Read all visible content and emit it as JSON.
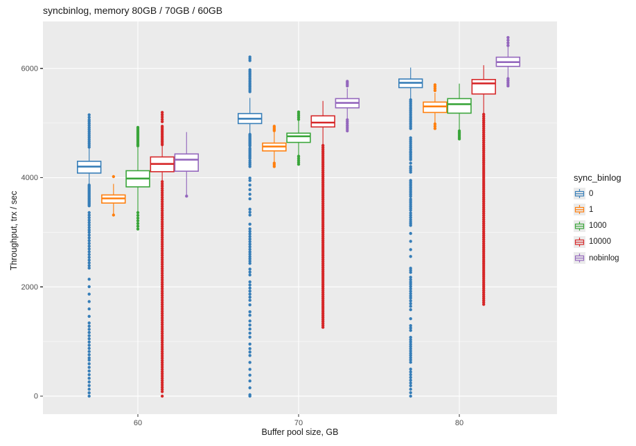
{
  "chart_data": {
    "type": "boxplot",
    "title": "syncbinlog, memory 80GB / 70GB / 60GB",
    "xlabel": "Buffer pool size, GB",
    "ylabel": "Throughput, trx / sec",
    "x_categories": [
      "60",
      "70",
      "80"
    ],
    "y_ticks": [
      0,
      2000,
      4000,
      6000
    ],
    "y_minor_ticks": [
      1000,
      3000,
      5000
    ],
    "ylim": [
      -330,
      6860
    ],
    "grid": "major-and-minor",
    "legend_title": "sync_binlog",
    "legend_position": "right",
    "panel_bg": "#EBEBEB",
    "series": [
      {
        "name": "0",
        "color": "#377eb8",
        "groups": [
          {
            "whislo": 3886,
            "q1": 4085,
            "med": 4202,
            "q3": 4300,
            "whishi": 4540,
            "out_hi": [
              [
                4560,
                5030,
                14
              ],
              [
                5060,
                5150,
                3
              ]
            ],
            "out_lo": [
              [
                3485,
                3865,
                18
              ],
              [
                3042,
                3360,
                8
              ],
              [
                2390,
                3000,
                13
              ],
              [
                2345,
                2345,
                1
              ],
              [
                1460,
                2140,
                6
              ],
              [
                700,
                1340,
                12
              ],
              [
                60,
                660,
                10
              ],
              [
                0,
                0,
                1
              ]
            ]
          },
          {
            "whislo": 4814,
            "q1": 4991,
            "med": 5080,
            "q3": 5173,
            "whishi": 5460,
            "out_hi": [
              [
                5574,
                5975,
                14
              ],
              [
                6143,
                6210,
                3
              ]
            ],
            "out_lo": [
              [
                4582,
                4793,
                11
              ],
              [
                4350,
                4540,
                8
              ],
              [
                4203,
                4307,
                4
              ],
              [
                3949,
                3992,
                2
              ],
              [
                3612,
                3865,
                4
              ],
              [
                3316,
                3422,
                3
              ],
              [
                3148,
                3148,
                1
              ],
              [
                2641,
                3063,
                10
              ],
              [
                2430,
                2599,
                5
              ],
              [
                2219,
                2325,
                3
              ],
              [
                1755,
                2092,
                7
              ],
              [
                1671,
                1671,
                1
              ],
              [
                1481,
                1544,
                2
              ],
              [
                1080,
                1376,
                5
              ],
              [
                953,
                953,
                1
              ],
              [
                744,
                870,
                3
              ],
              [
                617,
                617,
                1
              ],
              [
                384,
                490,
                2
              ],
              [
                278,
                278,
                1
              ],
              [
                25,
                152,
                2
              ],
              [
                0,
                0,
                1
              ]
            ]
          },
          {
            "whislo": 5447,
            "q1": 5649,
            "med": 5737,
            "q3": 5806,
            "whishi": 6016,
            "out_hi": [],
            "out_lo": [
              [
                4899,
                5426,
                17
              ],
              [
                4477,
                4730,
                8
              ],
              [
                4329,
                4456,
                5
              ],
              [
                4266,
                4266,
                1
              ],
              [
                4101,
                4203,
                4
              ],
              [
                3658,
                3949,
                10
              ],
              [
                3405,
                3607,
                7
              ],
              [
                3228,
                3354,
                4
              ],
              [
                3127,
                3190,
                3
              ],
              [
                2979,
                2979,
                1
              ],
              [
                2835,
                2835,
                1
              ],
              [
                2683,
                2683,
                1
              ],
              [
                2557,
                2557,
                1
              ],
              [
                2266,
                2342,
                3
              ],
              [
                2089,
                2177,
                3
              ],
              [
                1835,
                2051,
                6
              ],
              [
                1645,
                1797,
                4
              ],
              [
                1582,
                1582,
                1
              ],
              [
                1418,
                1418,
                1
              ],
              [
                1203,
                1291,
                3
              ],
              [
                785,
                1076,
                8
              ],
              [
                620,
                747,
                4
              ],
              [
                241,
                494,
                6
              ],
              [
                0,
                190,
                4
              ]
            ]
          }
        ]
      },
      {
        "name": "1",
        "color": "#ff7f0e",
        "groups": [
          {
            "whislo": 3338,
            "q1": 3535,
            "med": 3620,
            "q3": 3683,
            "whishi": 3886,
            "out_hi": [
              [
                4020,
                4020,
                1
              ]
            ],
            "out_lo": [
              [
                3316,
                3316,
                1
              ]
            ]
          },
          {
            "whislo": 4287,
            "q1": 4490,
            "med": 4570,
            "q3": 4633,
            "whishi": 4835,
            "out_hi": [
              [
                4860,
                4941,
                4
              ]
            ],
            "out_lo": [
              [
                4203,
                4266,
                3
              ]
            ]
          },
          {
            "whislo": 5004,
            "q1": 5194,
            "med": 5304,
            "q3": 5384,
            "whishi": 5553,
            "out_hi": [
              [
                5595,
                5700,
                4
              ]
            ],
            "out_lo": [
              [
                4899,
                4983,
                3
              ]
            ]
          }
        ]
      },
      {
        "name": "1000",
        "color": "#3aa53a",
        "groups": [
          {
            "whislo": 3380,
            "q1": 3832,
            "med": 3984,
            "q3": 4127,
            "whishi": 4561,
            "out_hi": [
              [
                4582,
                4921,
                14
              ]
            ],
            "out_lo": [
              [
                3060,
                3360,
                7
              ]
            ]
          },
          {
            "whislo": 4414,
            "q1": 4645,
            "med": 4757,
            "q3": 4814,
            "whishi": 5131,
            "out_hi": [
              [
                5066,
                5202,
                5
              ]
            ],
            "out_lo": [
              [
                4245,
                4392,
                5
              ]
            ]
          },
          {
            "whislo": 4878,
            "q1": 5181,
            "med": 5346,
            "q3": 5447,
            "whishi": 5722,
            "out_hi": [],
            "out_lo": [
              [
                4709,
                4857,
                6
              ]
            ]
          }
        ]
      },
      {
        "name": "10000",
        "color": "#d62728",
        "groups": [
          {
            "whislo": 3949,
            "q1": 4110,
            "med": 4251,
            "q3": 4380,
            "whishi": 4582,
            "out_hi": [
              [
                4604,
                4941,
                12
              ],
              [
                5025,
                5195,
                5
              ]
            ],
            "out_lo": [
              [
                82,
                3927,
                95
              ],
              [
                0,
                0,
                1
              ]
            ]
          },
          {
            "whislo": 4604,
            "q1": 4928,
            "med": 5009,
            "q3": 5131,
            "whishi": 5405,
            "out_hi": [],
            "out_lo": [
              [
                1260,
                4590,
                95
              ]
            ]
          },
          {
            "whislo": 5173,
            "q1": 5532,
            "med": 5726,
            "q3": 5797,
            "whishi": 6059,
            "out_hi": [],
            "out_lo": [
              [
                1680,
                5160,
                95
              ]
            ]
          }
        ]
      },
      {
        "name": "nobinlog",
        "color": "#9467bd",
        "groups": [
          {
            "whislo": 3675,
            "q1": 4118,
            "med": 4329,
            "q3": 4434,
            "whishi": 4835,
            "out_hi": [],
            "out_lo": [
              [
                3662,
                3662,
                1
              ]
            ]
          },
          {
            "whislo": 5067,
            "q1": 5278,
            "med": 5369,
            "q3": 5447,
            "whishi": 5637,
            "out_hi": [
              [
                5680,
                5764,
                4
              ]
            ],
            "out_lo": [
              [
                4857,
                5060,
                7
              ]
            ]
          },
          {
            "whislo": 5827,
            "q1": 6038,
            "med": 6116,
            "q3": 6206,
            "whishi": 6503,
            "out_hi": [
              [
                6420,
                6566,
                4
              ]
            ],
            "out_lo": [
              [
                5680,
                5814,
                5
              ]
            ]
          }
        ]
      }
    ]
  }
}
